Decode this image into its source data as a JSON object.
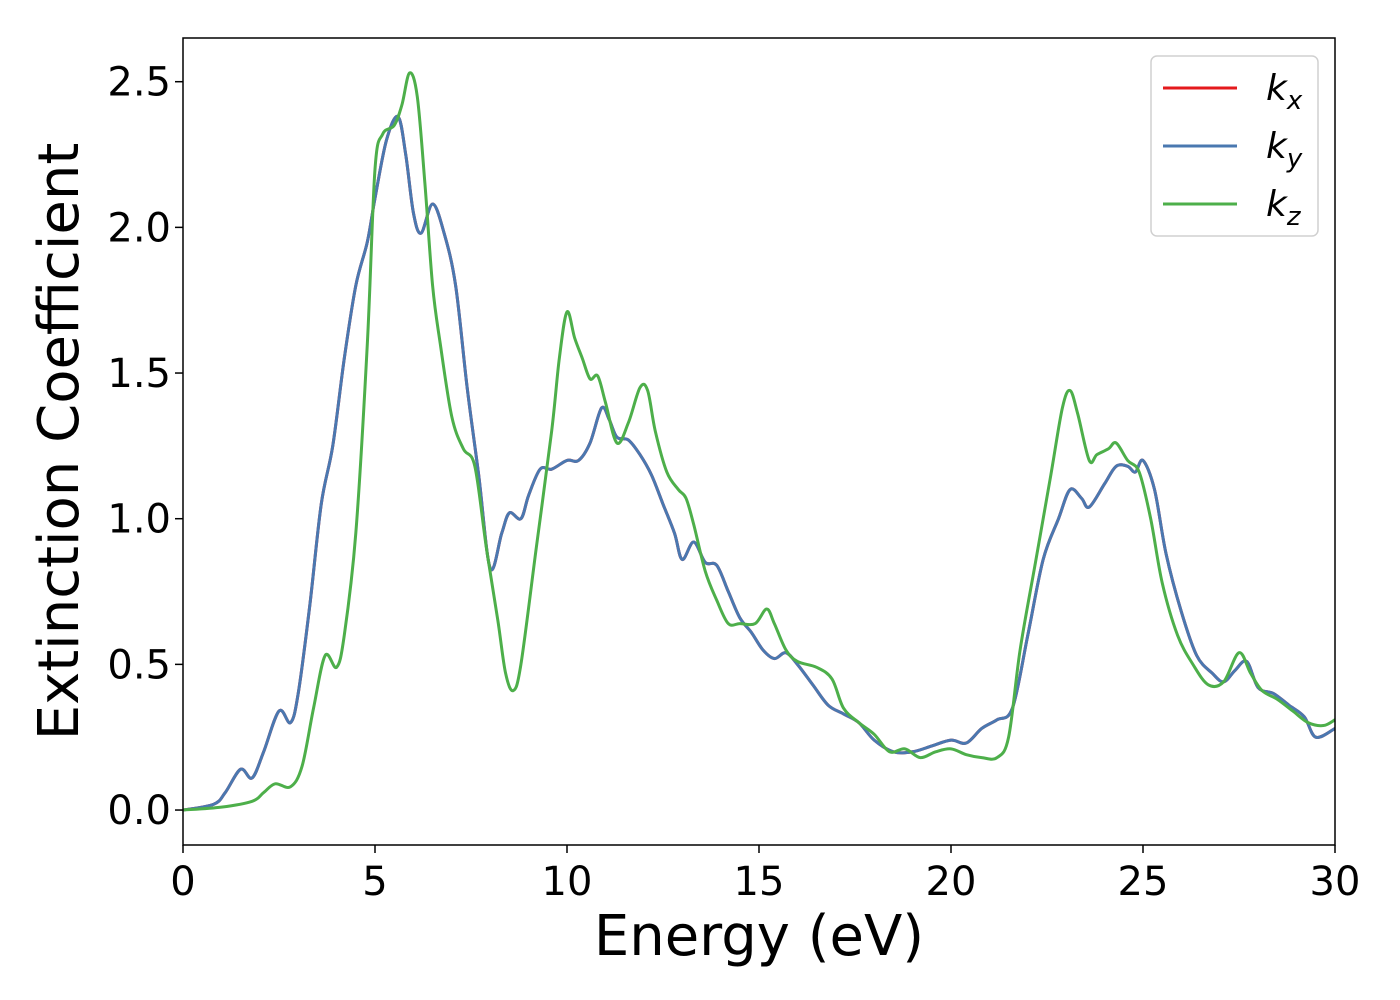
{
  "chart_data": {
    "type": "line",
    "title": "",
    "xlabel": "Energy (eV)",
    "ylabel": "Extinction Coefficient",
    "xlim": [
      0,
      30
    ],
    "ylim": [
      -0.12,
      2.65
    ],
    "xticks": [
      0,
      5,
      10,
      15,
      20,
      25,
      30
    ],
    "yticks": [
      0.0,
      0.5,
      1.0,
      1.5,
      2.0,
      2.5
    ],
    "xtick_labels": [
      "0",
      "5",
      "10",
      "15",
      "20",
      "25",
      "30"
    ],
    "ytick_labels": [
      "0.0",
      "0.5",
      "1.0",
      "1.5",
      "2.0",
      "2.5"
    ],
    "grid": false,
    "legend": {
      "placement": "top-right"
    },
    "series": [
      {
        "name": "k_x",
        "label_main": "k",
        "label_sub": "x",
        "color": "#e41a1c",
        "points": [
          [
            0,
            0
          ],
          [
            0.8,
            0.02
          ],
          [
            1.1,
            0.06
          ],
          [
            1.5,
            0.14
          ],
          [
            1.8,
            0.11
          ],
          [
            2.1,
            0.2
          ],
          [
            2.5,
            0.34
          ],
          [
            2.8,
            0.3
          ],
          [
            3.0,
            0.4
          ],
          [
            3.3,
            0.7
          ],
          [
            3.6,
            1.05
          ],
          [
            3.9,
            1.25
          ],
          [
            4.2,
            1.55
          ],
          [
            4.5,
            1.8
          ],
          [
            4.8,
            1.95
          ],
          [
            5.0,
            2.1
          ],
          [
            5.3,
            2.3
          ],
          [
            5.6,
            2.38
          ],
          [
            5.8,
            2.25
          ],
          [
            6.0,
            2.05
          ],
          [
            6.2,
            1.98
          ],
          [
            6.5,
            2.08
          ],
          [
            6.8,
            1.98
          ],
          [
            7.1,
            1.8
          ],
          [
            7.4,
            1.45
          ],
          [
            7.7,
            1.15
          ],
          [
            8.0,
            0.83
          ],
          [
            8.3,
            0.95
          ],
          [
            8.5,
            1.02
          ],
          [
            8.8,
            1.0
          ],
          [
            9.0,
            1.08
          ],
          [
            9.3,
            1.17
          ],
          [
            9.6,
            1.17
          ],
          [
            10.0,
            1.2
          ],
          [
            10.3,
            1.2
          ],
          [
            10.6,
            1.26
          ],
          [
            10.9,
            1.38
          ],
          [
            11.1,
            1.34
          ],
          [
            11.3,
            1.28
          ],
          [
            11.6,
            1.27
          ],
          [
            11.9,
            1.22
          ],
          [
            12.2,
            1.15
          ],
          [
            12.5,
            1.05
          ],
          [
            12.8,
            0.95
          ],
          [
            13.0,
            0.86
          ],
          [
            13.3,
            0.92
          ],
          [
            13.6,
            0.85
          ],
          [
            13.9,
            0.84
          ],
          [
            14.2,
            0.75
          ],
          [
            14.5,
            0.66
          ],
          [
            14.8,
            0.61
          ],
          [
            15.1,
            0.55
          ],
          [
            15.4,
            0.52
          ],
          [
            15.7,
            0.54
          ],
          [
            16.0,
            0.5
          ],
          [
            16.4,
            0.43
          ],
          [
            16.8,
            0.36
          ],
          [
            17.2,
            0.33
          ],
          [
            17.6,
            0.3
          ],
          [
            18.0,
            0.24
          ],
          [
            18.5,
            0.2
          ],
          [
            19.0,
            0.2
          ],
          [
            19.5,
            0.22
          ],
          [
            20.0,
            0.24
          ],
          [
            20.4,
            0.23
          ],
          [
            20.8,
            0.28
          ],
          [
            21.2,
            0.31
          ],
          [
            21.6,
            0.35
          ],
          [
            22.0,
            0.6
          ],
          [
            22.4,
            0.86
          ],
          [
            22.8,
            1.0
          ],
          [
            23.1,
            1.1
          ],
          [
            23.4,
            1.07
          ],
          [
            23.6,
            1.04
          ],
          [
            24.0,
            1.12
          ],
          [
            24.3,
            1.18
          ],
          [
            24.6,
            1.18
          ],
          [
            24.8,
            1.16
          ],
          [
            25.0,
            1.2
          ],
          [
            25.3,
            1.1
          ],
          [
            25.6,
            0.88
          ],
          [
            26.0,
            0.68
          ],
          [
            26.4,
            0.53
          ],
          [
            26.8,
            0.47
          ],
          [
            27.1,
            0.44
          ],
          [
            27.4,
            0.48
          ],
          [
            27.7,
            0.51
          ],
          [
            28.0,
            0.42
          ],
          [
            28.4,
            0.4
          ],
          [
            28.8,
            0.36
          ],
          [
            29.2,
            0.32
          ],
          [
            29.5,
            0.25
          ],
          [
            30.0,
            0.28
          ]
        ]
      },
      {
        "name": "k_y",
        "label_main": "k",
        "label_sub": "y",
        "color": "#4a78b0",
        "points": [
          [
            0,
            0
          ],
          [
            0.8,
            0.02
          ],
          [
            1.1,
            0.06
          ],
          [
            1.5,
            0.14
          ],
          [
            1.8,
            0.11
          ],
          [
            2.1,
            0.2
          ],
          [
            2.5,
            0.34
          ],
          [
            2.8,
            0.3
          ],
          [
            3.0,
            0.4
          ],
          [
            3.3,
            0.7
          ],
          [
            3.6,
            1.05
          ],
          [
            3.9,
            1.25
          ],
          [
            4.2,
            1.55
          ],
          [
            4.5,
            1.8
          ],
          [
            4.8,
            1.95
          ],
          [
            5.0,
            2.1
          ],
          [
            5.3,
            2.3
          ],
          [
            5.6,
            2.38
          ],
          [
            5.8,
            2.25
          ],
          [
            6.0,
            2.05
          ],
          [
            6.2,
            1.98
          ],
          [
            6.5,
            2.08
          ],
          [
            6.8,
            1.98
          ],
          [
            7.1,
            1.8
          ],
          [
            7.4,
            1.45
          ],
          [
            7.7,
            1.15
          ],
          [
            8.0,
            0.83
          ],
          [
            8.3,
            0.95
          ],
          [
            8.5,
            1.02
          ],
          [
            8.8,
            1.0
          ],
          [
            9.0,
            1.08
          ],
          [
            9.3,
            1.17
          ],
          [
            9.6,
            1.17
          ],
          [
            10.0,
            1.2
          ],
          [
            10.3,
            1.2
          ],
          [
            10.6,
            1.26
          ],
          [
            10.9,
            1.38
          ],
          [
            11.1,
            1.34
          ],
          [
            11.3,
            1.28
          ],
          [
            11.6,
            1.27
          ],
          [
            11.9,
            1.22
          ],
          [
            12.2,
            1.15
          ],
          [
            12.5,
            1.05
          ],
          [
            12.8,
            0.95
          ],
          [
            13.0,
            0.86
          ],
          [
            13.3,
            0.92
          ],
          [
            13.6,
            0.85
          ],
          [
            13.9,
            0.84
          ],
          [
            14.2,
            0.75
          ],
          [
            14.5,
            0.66
          ],
          [
            14.8,
            0.61
          ],
          [
            15.1,
            0.55
          ],
          [
            15.4,
            0.52
          ],
          [
            15.7,
            0.54
          ],
          [
            16.0,
            0.5
          ],
          [
            16.4,
            0.43
          ],
          [
            16.8,
            0.36
          ],
          [
            17.2,
            0.33
          ],
          [
            17.6,
            0.3
          ],
          [
            18.0,
            0.24
          ],
          [
            18.5,
            0.2
          ],
          [
            19.0,
            0.2
          ],
          [
            19.5,
            0.22
          ],
          [
            20.0,
            0.24
          ],
          [
            20.4,
            0.23
          ],
          [
            20.8,
            0.28
          ],
          [
            21.2,
            0.31
          ],
          [
            21.6,
            0.35
          ],
          [
            22.0,
            0.6
          ],
          [
            22.4,
            0.86
          ],
          [
            22.8,
            1.0
          ],
          [
            23.1,
            1.1
          ],
          [
            23.4,
            1.07
          ],
          [
            23.6,
            1.04
          ],
          [
            24.0,
            1.12
          ],
          [
            24.3,
            1.18
          ],
          [
            24.6,
            1.18
          ],
          [
            24.8,
            1.16
          ],
          [
            25.0,
            1.2
          ],
          [
            25.3,
            1.1
          ],
          [
            25.6,
            0.88
          ],
          [
            26.0,
            0.68
          ],
          [
            26.4,
            0.53
          ],
          [
            26.8,
            0.47
          ],
          [
            27.1,
            0.44
          ],
          [
            27.4,
            0.48
          ],
          [
            27.7,
            0.51
          ],
          [
            28.0,
            0.42
          ],
          [
            28.4,
            0.4
          ],
          [
            28.8,
            0.36
          ],
          [
            29.2,
            0.32
          ],
          [
            29.5,
            0.25
          ],
          [
            30.0,
            0.28
          ]
        ]
      },
      {
        "name": "k_z",
        "label_main": "k",
        "label_sub": "z",
        "color": "#4daf4a",
        "points": [
          [
            0,
            0
          ],
          [
            1.0,
            0.01
          ],
          [
            1.8,
            0.03
          ],
          [
            2.1,
            0.06
          ],
          [
            2.4,
            0.09
          ],
          [
            2.8,
            0.08
          ],
          [
            3.1,
            0.15
          ],
          [
            3.4,
            0.35
          ],
          [
            3.7,
            0.53
          ],
          [
            4.0,
            0.49
          ],
          [
            4.2,
            0.6
          ],
          [
            4.5,
            0.95
          ],
          [
            4.8,
            1.6
          ],
          [
            5.0,
            2.2
          ],
          [
            5.2,
            2.32
          ],
          [
            5.5,
            2.35
          ],
          [
            5.7,
            2.42
          ],
          [
            5.9,
            2.53
          ],
          [
            6.1,
            2.45
          ],
          [
            6.3,
            2.15
          ],
          [
            6.5,
            1.8
          ],
          [
            6.7,
            1.6
          ],
          [
            7.0,
            1.35
          ],
          [
            7.3,
            1.24
          ],
          [
            7.6,
            1.18
          ],
          [
            7.9,
            0.9
          ],
          [
            8.2,
            0.65
          ],
          [
            8.4,
            0.47
          ],
          [
            8.6,
            0.41
          ],
          [
            8.8,
            0.5
          ],
          [
            9.2,
            0.9
          ],
          [
            9.6,
            1.3
          ],
          [
            9.8,
            1.55
          ],
          [
            10.0,
            1.71
          ],
          [
            10.2,
            1.62
          ],
          [
            10.4,
            1.55
          ],
          [
            10.6,
            1.48
          ],
          [
            10.8,
            1.49
          ],
          [
            11.0,
            1.4
          ],
          [
            11.3,
            1.26
          ],
          [
            11.6,
            1.33
          ],
          [
            11.9,
            1.45
          ],
          [
            12.1,
            1.44
          ],
          [
            12.3,
            1.3
          ],
          [
            12.6,
            1.16
          ],
          [
            12.9,
            1.1
          ],
          [
            13.1,
            1.07
          ],
          [
            13.3,
            0.98
          ],
          [
            13.6,
            0.82
          ],
          [
            13.9,
            0.72
          ],
          [
            14.2,
            0.64
          ],
          [
            14.5,
            0.64
          ],
          [
            14.9,
            0.64
          ],
          [
            15.2,
            0.69
          ],
          [
            15.4,
            0.64
          ],
          [
            15.7,
            0.55
          ],
          [
            16.0,
            0.51
          ],
          [
            16.5,
            0.49
          ],
          [
            16.9,
            0.45
          ],
          [
            17.2,
            0.35
          ],
          [
            17.6,
            0.3
          ],
          [
            18.0,
            0.26
          ],
          [
            18.4,
            0.2
          ],
          [
            18.8,
            0.21
          ],
          [
            19.2,
            0.18
          ],
          [
            19.6,
            0.2
          ],
          [
            20.0,
            0.21
          ],
          [
            20.4,
            0.19
          ],
          [
            20.8,
            0.18
          ],
          [
            21.2,
            0.18
          ],
          [
            21.5,
            0.25
          ],
          [
            21.8,
            0.55
          ],
          [
            22.2,
            0.85
          ],
          [
            22.6,
            1.15
          ],
          [
            22.9,
            1.38
          ],
          [
            23.1,
            1.44
          ],
          [
            23.3,
            1.36
          ],
          [
            23.6,
            1.2
          ],
          [
            23.8,
            1.22
          ],
          [
            24.1,
            1.24
          ],
          [
            24.3,
            1.26
          ],
          [
            24.6,
            1.2
          ],
          [
            24.9,
            1.16
          ],
          [
            25.2,
            1.0
          ],
          [
            25.5,
            0.78
          ],
          [
            25.9,
            0.6
          ],
          [
            26.3,
            0.5
          ],
          [
            26.7,
            0.43
          ],
          [
            27.1,
            0.44
          ],
          [
            27.5,
            0.54
          ],
          [
            27.8,
            0.47
          ],
          [
            28.1,
            0.41
          ],
          [
            28.5,
            0.38
          ],
          [
            28.9,
            0.34
          ],
          [
            29.3,
            0.3
          ],
          [
            29.7,
            0.29
          ],
          [
            30.0,
            0.31
          ]
        ]
      }
    ]
  }
}
